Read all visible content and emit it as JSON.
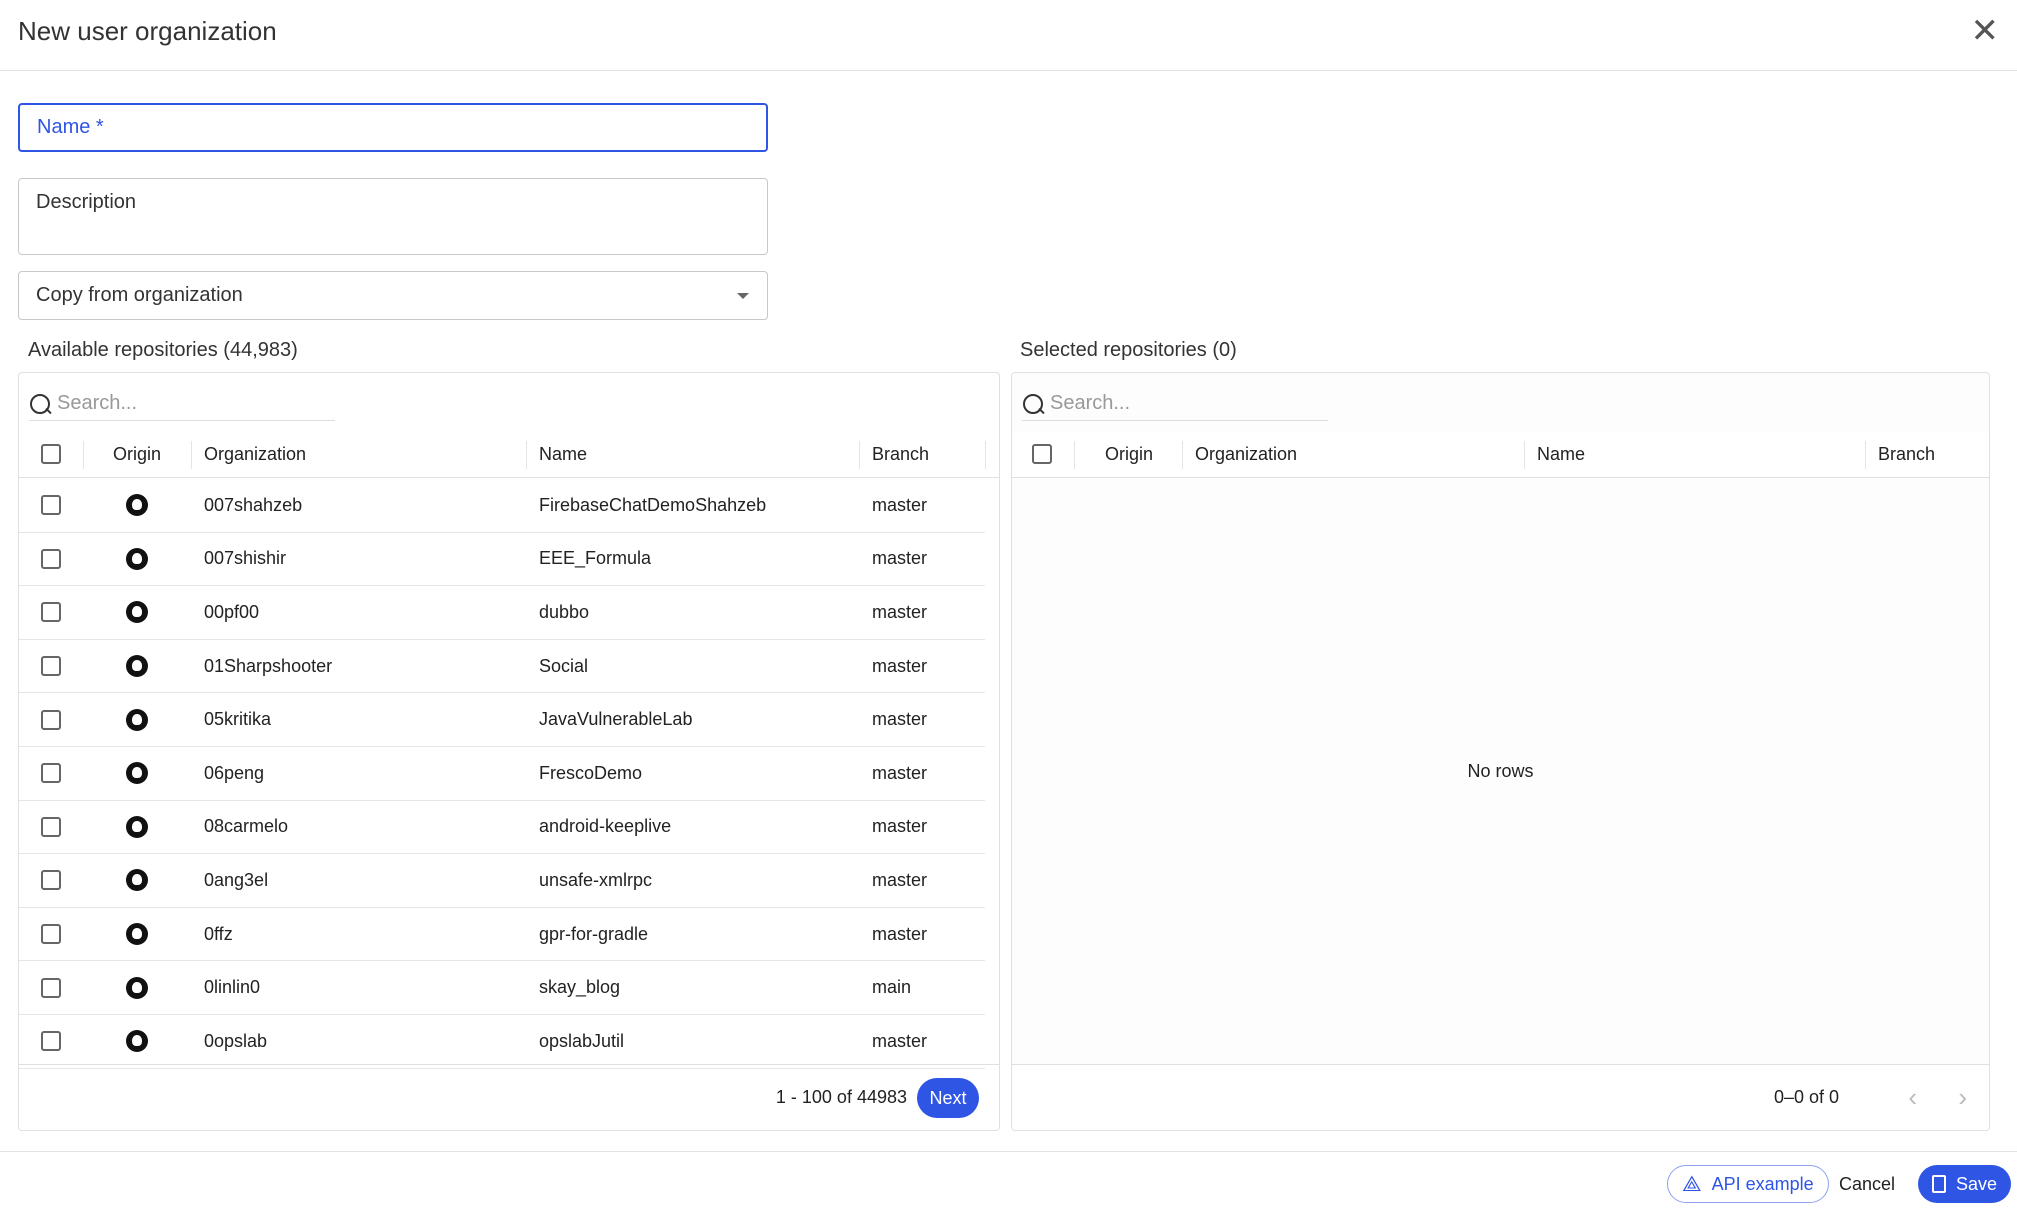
{
  "dialog": {
    "title": "New user organization"
  },
  "form": {
    "name_label": "Name *",
    "description_label": "Description",
    "copy_label": "Copy from organization"
  },
  "available": {
    "title": "Available repositories (44,983)",
    "search_placeholder": "Search...",
    "columns": [
      "Origin",
      "Organization",
      "Name",
      "Branch"
    ],
    "rows": [
      {
        "org": "007shahzeb",
        "name": "FirebaseChatDemoShahzeb",
        "branch": "master"
      },
      {
        "org": "007shishir",
        "name": "EEE_Formula",
        "branch": "master"
      },
      {
        "org": "00pf00",
        "name": "dubbo",
        "branch": "master"
      },
      {
        "org": "01Sharpshooter",
        "name": "Social",
        "branch": "master"
      },
      {
        "org": "05kritika",
        "name": "JavaVulnerableLab",
        "branch": "master"
      },
      {
        "org": "06peng",
        "name": "FrescoDemo",
        "branch": "master"
      },
      {
        "org": "08carmelo",
        "name": "android-keeplive",
        "branch": "master"
      },
      {
        "org": "0ang3el",
        "name": "unsafe-xmlrpc",
        "branch": "master"
      },
      {
        "org": "0ffz",
        "name": "gpr-for-gradle",
        "branch": "master"
      },
      {
        "org": "0linlin0",
        "name": "skay_blog",
        "branch": "main"
      },
      {
        "org": "0opslab",
        "name": "opslabJutil",
        "branch": "master"
      }
    ],
    "pagination": "1 - 100 of 44983",
    "next_label": "Next"
  },
  "selected": {
    "title": "Selected repositories (0)",
    "search_placeholder": "Search...",
    "columns": [
      "Origin",
      "Organization",
      "Name",
      "Branch"
    ],
    "empty": "No rows",
    "pagination": "0–0 of 0"
  },
  "actions": {
    "api_label": "API example",
    "cancel_label": "Cancel",
    "save_label": "Save"
  },
  "colors": {
    "accent": "#2f55e4"
  }
}
